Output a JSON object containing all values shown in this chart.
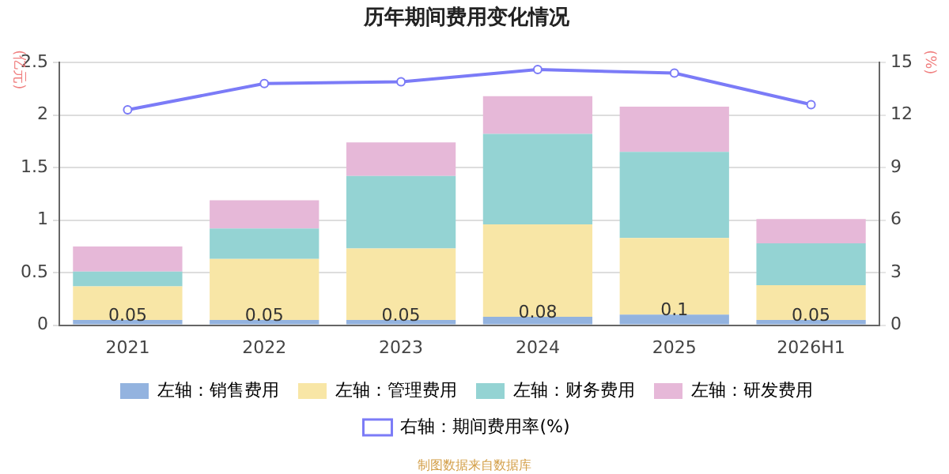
{
  "chart_data": {
    "type": "bar",
    "title": "历年期间费用变化情况",
    "ylabel": "(亿元)",
    "y2label": "(%)",
    "categories": [
      "2021",
      "2022",
      "2023",
      "2024",
      "2025",
      "2026H1"
    ],
    "stacked": true,
    "series": [
      {
        "name": "左轴：销售费用",
        "color": "#93b3df",
        "values": [
          0.05,
          0.05,
          0.05,
          0.08,
          0.1,
          0.05
        ],
        "value_labels": [
          "0.05",
          "0.05",
          "0.05",
          "0.08",
          "0.1",
          "0.05"
        ]
      },
      {
        "name": "左轴：管理费用",
        "color": "#f8e6a6",
        "values": [
          0.32,
          0.58,
          0.68,
          0.88,
          0.73,
          0.33
        ]
      },
      {
        "name": "左轴：财务费用",
        "color": "#94d3d3",
        "values": [
          0.14,
          0.29,
          0.69,
          0.86,
          0.82,
          0.4
        ]
      },
      {
        "name": "左轴：研发费用",
        "color": "#e6b8d8",
        "values": [
          0.24,
          0.27,
          0.32,
          0.36,
          0.43,
          0.23
        ]
      },
      {
        "name": "右轴：期间费用率(%)",
        "type": "line",
        "axis": "y2",
        "color": "#7b7bf7",
        "marker": "circle",
        "values": [
          12.3,
          13.8,
          13.9,
          14.6,
          14.4,
          12.6
        ]
      }
    ],
    "ylim": [
      0,
      2.5
    ],
    "yticks": [
      0,
      0.5,
      1,
      1.5,
      2,
      2.5
    ],
    "y2lim": [
      0,
      15
    ],
    "y2ticks": [
      0,
      3,
      6,
      9,
      12,
      15
    ],
    "grid": "y",
    "legend": "bottom",
    "annotations": [
      "制图数据来自数据库"
    ]
  }
}
